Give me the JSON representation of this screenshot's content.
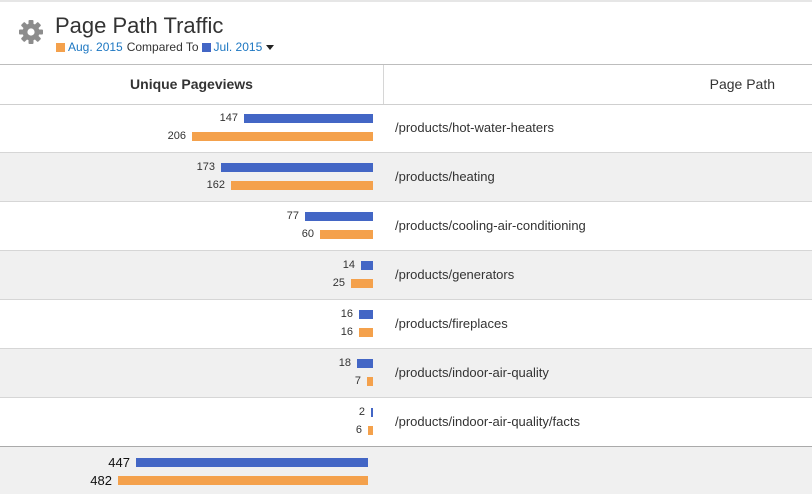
{
  "header": {
    "title": "Page Path Traffic",
    "current_period": "Aug. 2015",
    "compared_label": "Compared To",
    "previous_period": "Jul. 2015",
    "current_color": "#f4a14c",
    "previous_color": "#4366c5"
  },
  "table": {
    "col_pageviews": "Unique Pageviews",
    "col_path": "Page Path",
    "rows": [
      {
        "path": "/products/hot-water-heaters",
        "jul": 147,
        "aug": 206,
        "jul_label": "147",
        "aug_label": "206"
      },
      {
        "path": "/products/heating",
        "jul": 173,
        "aug": 162,
        "jul_label": "173",
        "aug_label": "162"
      },
      {
        "path": "/products/cooling-air-conditioning",
        "jul": 77,
        "aug": 60,
        "jul_label": "77",
        "aug_label": "60"
      },
      {
        "path": "/products/generators",
        "jul": 14,
        "aug": 25,
        "jul_label": "14",
        "aug_label": "25"
      },
      {
        "path": "/products/fireplaces",
        "jul": 16,
        "aug": 16,
        "jul_label": "16",
        "aug_label": "16"
      },
      {
        "path": "/products/indoor-air-quality",
        "jul": 18,
        "aug": 7,
        "jul_label": "18",
        "aug_label": "7"
      },
      {
        "path": "/products/indoor-air-quality/facts",
        "jul": 2,
        "aug": 6,
        "jul_label": "2",
        "aug_label": "6"
      }
    ],
    "totals": {
      "jul": 447,
      "aug": 482,
      "jul_label": "447",
      "aug_label": "482"
    }
  }
}
